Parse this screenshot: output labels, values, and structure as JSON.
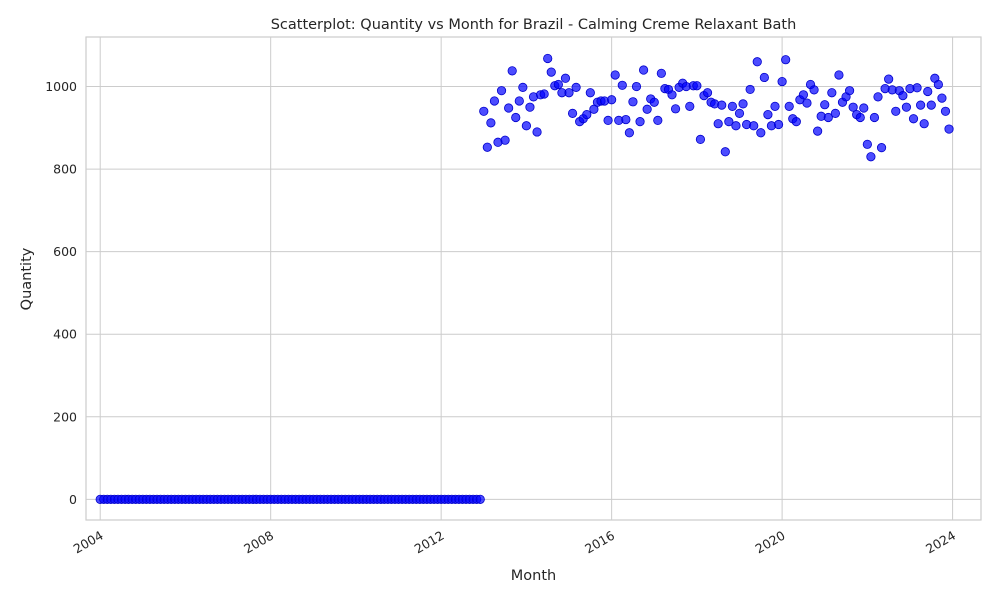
{
  "chart_data": {
    "type": "scatter",
    "title": "Scatterplot: Quantity vs Month for Brazil - Calming Creme Relaxant Bath",
    "xlabel": "Month",
    "ylabel": "Quantity",
    "x_axis": {
      "kind": "date",
      "ticks": [
        "2004",
        "2008",
        "2012",
        "2016",
        "2020",
        "2024"
      ],
      "range": [
        "2003-09",
        "2024-09"
      ]
    },
    "y_axis": {
      "ticks": [
        "0",
        "200",
        "400",
        "600",
        "800",
        "1000"
      ],
      "range": [
        -50,
        1120
      ]
    },
    "grid": true,
    "color": "#0000ff",
    "series": [
      {
        "x": [
          "2004-01",
          "2004-02",
          "2004-03",
          "2004-04",
          "2004-05",
          "2004-06",
          "2004-07",
          "2004-08",
          "2004-09",
          "2004-10",
          "2004-11",
          "2004-12",
          "2005-01",
          "2005-02",
          "2005-03",
          "2005-04",
          "2005-05",
          "2005-06",
          "2005-07",
          "2005-08",
          "2005-09",
          "2005-10",
          "2005-11",
          "2005-12",
          "2006-01",
          "2006-02",
          "2006-03",
          "2006-04",
          "2006-05",
          "2006-06",
          "2006-07",
          "2006-08",
          "2006-09",
          "2006-10",
          "2006-11",
          "2006-12",
          "2007-01",
          "2007-02",
          "2007-03",
          "2007-04",
          "2007-05",
          "2007-06",
          "2007-07",
          "2007-08",
          "2007-09",
          "2007-10",
          "2007-11",
          "2007-12",
          "2008-01",
          "2008-02",
          "2008-03",
          "2008-04",
          "2008-05",
          "2008-06",
          "2008-07",
          "2008-08",
          "2008-09",
          "2008-10",
          "2008-11",
          "2008-12",
          "2009-01",
          "2009-02",
          "2009-03",
          "2009-04",
          "2009-05",
          "2009-06",
          "2009-07",
          "2009-08",
          "2009-09",
          "2009-10",
          "2009-11",
          "2009-12",
          "2010-01",
          "2010-02",
          "2010-03",
          "2010-04",
          "2010-05",
          "2010-06",
          "2010-07",
          "2010-08",
          "2010-09",
          "2010-10",
          "2010-11",
          "2010-12",
          "2011-01",
          "2011-02",
          "2011-03",
          "2011-04",
          "2011-05",
          "2011-06",
          "2011-07",
          "2011-08",
          "2011-09",
          "2011-10",
          "2011-11",
          "2011-12",
          "2012-01",
          "2012-02",
          "2012-03",
          "2012-04",
          "2012-05",
          "2012-06",
          "2012-07",
          "2012-08",
          "2012-09",
          "2012-10",
          "2012-11",
          "2012-12",
          "2013-01",
          "2013-02",
          "2013-03",
          "2013-04",
          "2013-05",
          "2013-06",
          "2013-07",
          "2013-08",
          "2013-09",
          "2013-10",
          "2013-11",
          "2013-12",
          "2014-01",
          "2014-02",
          "2014-03",
          "2014-04",
          "2014-05",
          "2014-06",
          "2014-07",
          "2014-08",
          "2014-09",
          "2014-10",
          "2014-11",
          "2014-12",
          "2015-01",
          "2015-02",
          "2015-03",
          "2015-04",
          "2015-05",
          "2015-06",
          "2015-07",
          "2015-08",
          "2015-09",
          "2015-10",
          "2015-11",
          "2015-12",
          "2016-01",
          "2016-02",
          "2016-03",
          "2016-04",
          "2016-05",
          "2016-06",
          "2016-07",
          "2016-08",
          "2016-09",
          "2016-10",
          "2016-11",
          "2016-12",
          "2017-01",
          "2017-02",
          "2017-03",
          "2017-04",
          "2017-05",
          "2017-06",
          "2017-07",
          "2017-08",
          "2017-09",
          "2017-10",
          "2017-11",
          "2017-12",
          "2018-01",
          "2018-02",
          "2018-03",
          "2018-04",
          "2018-05",
          "2018-06",
          "2018-07",
          "2018-08",
          "2018-09",
          "2018-10",
          "2018-11",
          "2018-12",
          "2019-01",
          "2019-02",
          "2019-03",
          "2019-04",
          "2019-05",
          "2019-06",
          "2019-07",
          "2019-08",
          "2019-09",
          "2019-10",
          "2019-11",
          "2019-12",
          "2020-01",
          "2020-02",
          "2020-03",
          "2020-04",
          "2020-05",
          "2020-06",
          "2020-07",
          "2020-08",
          "2020-09",
          "2020-10",
          "2020-11",
          "2020-12",
          "2021-01",
          "2021-02",
          "2021-03",
          "2021-04",
          "2021-05",
          "2021-06",
          "2021-07",
          "2021-08",
          "2021-09",
          "2021-10",
          "2021-11",
          "2021-12",
          "2022-01",
          "2022-02",
          "2022-03",
          "2022-04",
          "2022-05",
          "2022-06",
          "2022-07",
          "2022-08",
          "2022-09",
          "2022-10",
          "2022-11",
          "2022-12",
          "2023-01",
          "2023-02",
          "2023-03",
          "2023-04",
          "2023-05",
          "2023-06",
          "2023-07",
          "2023-08",
          "2023-09",
          "2023-10",
          "2023-11",
          "2023-12"
        ],
        "y": [
          0,
          0,
          0,
          0,
          0,
          0,
          0,
          0,
          0,
          0,
          0,
          0,
          0,
          0,
          0,
          0,
          0,
          0,
          0,
          0,
          0,
          0,
          0,
          0,
          0,
          0,
          0,
          0,
          0,
          0,
          0,
          0,
          0,
          0,
          0,
          0,
          0,
          0,
          0,
          0,
          0,
          0,
          0,
          0,
          0,
          0,
          0,
          0,
          0,
          0,
          0,
          0,
          0,
          0,
          0,
          0,
          0,
          0,
          0,
          0,
          0,
          0,
          0,
          0,
          0,
          0,
          0,
          0,
          0,
          0,
          0,
          0,
          0,
          0,
          0,
          0,
          0,
          0,
          0,
          0,
          0,
          0,
          0,
          0,
          0,
          0,
          0,
          0,
          0,
          0,
          0,
          0,
          0,
          0,
          0,
          0,
          0,
          0,
          0,
          0,
          0,
          0,
          0,
          0,
          0,
          0,
          0,
          0,
          940,
          853,
          912,
          965,
          865,
          990,
          870,
          948,
          1038,
          925,
          965,
          998,
          905,
          950,
          975,
          890,
          980,
          982,
          1068,
          1035,
          1002,
          1005,
          985,
          1020,
          985,
          935,
          998,
          915,
          922,
          932,
          985,
          945,
          962,
          965,
          965,
          918,
          968,
          1028,
          918,
          1003,
          920,
          888,
          963,
          1000,
          915,
          1040,
          945,
          970,
          962,
          918,
          1032,
          995,
          993,
          980,
          946,
          998,
          1008,
          1000,
          952,
          1002,
          1002,
          872,
          978,
          985,
          962,
          958,
          910,
          955,
          842,
          915,
          952,
          905,
          935,
          958,
          908,
          993,
          905,
          1060,
          888,
          1022,
          932,
          905,
          952,
          908,
          1012,
          1065,
          952,
          922,
          915,
          968,
          980,
          960,
          1005,
          992,
          892,
          928,
          956,
          925,
          985,
          935,
          1028,
          962,
          975,
          990,
          950,
          932,
          925,
          948,
          860,
          830,
          925,
          975,
          852,
          995,
          1018,
          992,
          940,
          990,
          978,
          950,
          995,
          922,
          997,
          955,
          910,
          988,
          955,
          1020,
          1005,
          972,
          940,
          897
        ]
      }
    ]
  }
}
